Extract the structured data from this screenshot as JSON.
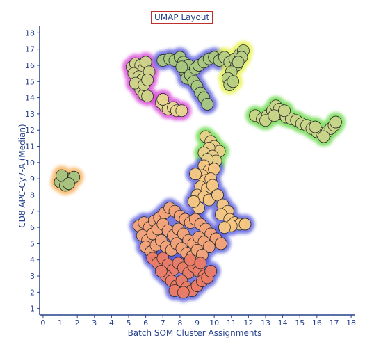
{
  "chart_data": {
    "type": "scatter",
    "title": "UMAP Layout",
    "xlabel": "Batch SOM Cluster Assignments",
    "ylabel": "CD8 APC-Cy7-A (Median)",
    "xlim": [
      -0.2,
      18.2
    ],
    "ylim": [
      0.6,
      18.4
    ],
    "xticks": [
      0,
      1,
      2,
      3,
      4,
      5,
      6,
      7,
      8,
      9,
      10,
      11,
      12,
      13,
      14,
      15,
      16,
      17,
      18
    ],
    "yticks": [
      1,
      2,
      3,
      4,
      5,
      6,
      7,
      8,
      9,
      10,
      11,
      12,
      13,
      14,
      15,
      16,
      17,
      18
    ],
    "grid": false,
    "legend": "none",
    "colors": {
      "axis": "#26408b",
      "point_outline": "#2a2a2a",
      "low_value": "#e8705a",
      "mid_value": "#f9c57c",
      "high_value": "#8fbf6d",
      "halo_blue": "#4b50d8",
      "halo_green": "#5ed63a",
      "halo_magenta": "#d43ad4",
      "halo_orange": "#f6a94a",
      "halo_yellow": "#e4f23a"
    },
    "clusters": [
      {
        "halo": "#f6a94a",
        "fill": "#a9c47e",
        "points": [
          [
            1.0,
            8.8
          ],
          [
            1.2,
            9.1
          ],
          [
            1.4,
            8.9
          ],
          [
            1.3,
            8.6
          ],
          [
            1.6,
            9.0
          ],
          [
            1.8,
            9.1
          ],
          [
            1.1,
            9.2
          ],
          [
            1.5,
            8.7
          ]
        ]
      },
      {
        "halo": "#5ed63a",
        "fill": "#c9d68a",
        "points": [
          [
            12.4,
            12.9
          ],
          [
            12.8,
            12.7
          ],
          [
            13.1,
            12.9
          ],
          [
            13.4,
            13.2
          ],
          [
            13.6,
            13.5
          ],
          [
            13.8,
            13.3
          ],
          [
            14.0,
            13.0
          ],
          [
            14.2,
            12.8
          ],
          [
            14.5,
            12.7
          ],
          [
            14.8,
            12.6
          ],
          [
            15.1,
            12.4
          ],
          [
            15.4,
            12.3
          ],
          [
            15.7,
            12.1
          ],
          [
            16.0,
            11.9
          ],
          [
            16.3,
            11.8
          ],
          [
            16.6,
            11.9
          ],
          [
            16.8,
            12.1
          ],
          [
            17.0,
            12.3
          ],
          [
            17.1,
            12.5
          ],
          [
            13.0,
            12.6
          ],
          [
            13.5,
            12.9
          ],
          [
            14.1,
            13.2
          ],
          [
            15.9,
            12.2
          ],
          [
            16.4,
            11.6
          ]
        ]
      },
      {
        "halo": "#d43ad4",
        "fill": "#cfd48a",
        "points": [
          [
            5.2,
            15.9
          ],
          [
            5.4,
            16.1
          ],
          [
            5.7,
            16.0
          ],
          [
            5.9,
            15.8
          ],
          [
            6.0,
            16.2
          ],
          [
            5.3,
            15.5
          ],
          [
            5.6,
            15.3
          ],
          [
            5.8,
            15.1
          ],
          [
            5.5,
            14.8
          ],
          [
            5.7,
            14.5
          ],
          [
            5.9,
            14.2
          ],
          [
            6.1,
            14.1
          ],
          [
            5.4,
            14.9
          ],
          [
            6.2,
            15.6
          ],
          [
            5.9,
            14.8
          ],
          [
            6.1,
            15.1
          ]
        ]
      },
      {
        "halo": "#d43ad4",
        "fill": "#e8d790",
        "points": [
          [
            6.9,
            13.7
          ],
          [
            7.1,
            13.5
          ],
          [
            7.3,
            13.3
          ],
          [
            7.6,
            13.4
          ],
          [
            7.8,
            13.2
          ],
          [
            8.1,
            13.2
          ],
          [
            7.0,
            13.9
          ]
        ]
      },
      {
        "halo": "#4b50d8",
        "fill": "#a9c880",
        "points": [
          [
            7.0,
            16.3
          ],
          [
            7.4,
            16.4
          ],
          [
            7.7,
            16.3
          ],
          [
            8.0,
            16.5
          ],
          [
            8.2,
            16.2
          ],
          [
            8.5,
            16.0
          ],
          [
            8.3,
            15.6
          ],
          [
            8.4,
            15.2
          ],
          [
            8.6,
            15.4
          ],
          [
            8.8,
            15.0
          ],
          [
            9.0,
            14.7
          ],
          [
            9.2,
            14.3
          ],
          [
            9.4,
            14.0
          ],
          [
            9.6,
            13.6
          ],
          [
            8.1,
            15.9
          ],
          [
            8.9,
            15.8
          ],
          [
            9.1,
            16.0
          ],
          [
            9.4,
            16.2
          ],
          [
            9.7,
            16.4
          ],
          [
            10.0,
            16.5
          ],
          [
            10.3,
            16.3
          ]
        ]
      },
      {
        "halo": "#e4f23a",
        "fill": "#b7cf84",
        "points": [
          [
            10.6,
            16.5
          ],
          [
            10.9,
            16.2
          ],
          [
            11.2,
            16.4
          ],
          [
            11.5,
            16.7
          ],
          [
            11.7,
            16.9
          ],
          [
            11.6,
            16.5
          ],
          [
            11.3,
            16.0
          ],
          [
            11.0,
            15.6
          ],
          [
            10.8,
            15.2
          ],
          [
            10.9,
            14.8
          ],
          [
            11.1,
            15.0
          ],
          [
            11.4,
            16.2
          ]
        ]
      },
      {
        "halo": "#5ed63a",
        "fill": "#e9d08a",
        "points": [
          [
            9.5,
            11.6
          ],
          [
            9.8,
            11.3
          ],
          [
            10.0,
            11.0
          ],
          [
            10.3,
            10.7
          ],
          [
            9.7,
            10.9
          ],
          [
            9.4,
            10.6
          ],
          [
            9.9,
            10.4
          ],
          [
            10.1,
            10.1
          ],
          [
            9.6,
            10.2
          ]
        ]
      },
      {
        "halo": "#4b50d8",
        "fill": "#f8c883",
        "points": [
          [
            9.4,
            9.8
          ],
          [
            9.7,
            9.5
          ],
          [
            10.0,
            9.6
          ],
          [
            9.3,
            9.2
          ],
          [
            9.5,
            8.9
          ],
          [
            9.8,
            9.0
          ],
          [
            9.2,
            8.5
          ],
          [
            9.6,
            8.4
          ],
          [
            9.9,
            8.6
          ],
          [
            9.0,
            8.0
          ],
          [
            9.4,
            7.9
          ],
          [
            9.7,
            7.7
          ],
          [
            10.2,
            8.0
          ],
          [
            10.5,
            7.4
          ],
          [
            10.8,
            7.0
          ],
          [
            10.4,
            6.8
          ],
          [
            10.9,
            6.5
          ],
          [
            11.2,
            6.3
          ],
          [
            11.5,
            6.2
          ],
          [
            11.8,
            6.2
          ],
          [
            11.0,
            6.1
          ],
          [
            10.6,
            6.0
          ],
          [
            8.9,
            9.3
          ],
          [
            9.1,
            7.2
          ],
          [
            8.8,
            7.6
          ]
        ]
      },
      {
        "halo": "#4b50d8",
        "fill": "#f4a578",
        "points": [
          [
            5.6,
            6.1
          ],
          [
            5.9,
            6.3
          ],
          [
            6.2,
            6.0
          ],
          [
            6.5,
            6.4
          ],
          [
            6.8,
            6.6
          ],
          [
            7.1,
            6.9
          ],
          [
            7.4,
            7.2
          ],
          [
            7.7,
            7.0
          ],
          [
            8.0,
            6.7
          ],
          [
            8.3,
            6.5
          ],
          [
            8.6,
            6.3
          ],
          [
            8.9,
            6.5
          ],
          [
            9.2,
            6.2
          ],
          [
            9.5,
            5.9
          ],
          [
            9.8,
            5.6
          ],
          [
            10.1,
            5.3
          ],
          [
            10.4,
            5.0
          ],
          [
            5.8,
            5.5
          ],
          [
            6.1,
            5.2
          ],
          [
            6.4,
            5.6
          ],
          [
            6.7,
            5.9
          ],
          [
            7.0,
            6.2
          ],
          [
            7.3,
            5.8
          ],
          [
            7.6,
            5.5
          ],
          [
            7.9,
            5.9
          ],
          [
            8.2,
            5.6
          ],
          [
            8.5,
            5.2
          ],
          [
            8.8,
            5.0
          ],
          [
            9.1,
            5.4
          ],
          [
            9.4,
            5.1
          ],
          [
            9.7,
            4.8
          ],
          [
            6.0,
            4.8
          ],
          [
            6.3,
            4.5
          ],
          [
            6.6,
            4.9
          ],
          [
            6.9,
            5.2
          ],
          [
            7.2,
            4.8
          ],
          [
            7.5,
            4.6
          ],
          [
            7.8,
            5.0
          ],
          [
            8.1,
            4.7
          ],
          [
            8.4,
            4.4
          ],
          [
            8.7,
            4.2
          ],
          [
            9.0,
            4.6
          ],
          [
            9.3,
            4.3
          ]
        ]
      },
      {
        "halo": "#4b50d8",
        "fill": "#ec7c66",
        "points": [
          [
            6.4,
            4.1
          ],
          [
            6.7,
            3.8
          ],
          [
            7.0,
            4.1
          ],
          [
            7.3,
            3.7
          ],
          [
            7.6,
            3.4
          ],
          [
            7.9,
            3.8
          ],
          [
            8.2,
            3.5
          ],
          [
            8.5,
            3.2
          ],
          [
            8.8,
            3.6
          ],
          [
            9.1,
            3.3
          ],
          [
            9.4,
            3.0
          ],
          [
            7.2,
            3.0
          ],
          [
            7.5,
            2.7
          ],
          [
            7.8,
            2.4
          ],
          [
            8.1,
            2.7
          ],
          [
            8.4,
            2.3
          ],
          [
            8.7,
            2.1
          ],
          [
            9.0,
            2.4
          ],
          [
            9.3,
            2.7
          ],
          [
            9.6,
            2.9
          ],
          [
            9.8,
            3.3
          ],
          [
            7.7,
            2.1
          ],
          [
            8.2,
            2.0
          ],
          [
            6.9,
            3.3
          ],
          [
            8.6,
            4.0
          ],
          [
            9.2,
            3.8
          ]
        ]
      }
    ]
  }
}
